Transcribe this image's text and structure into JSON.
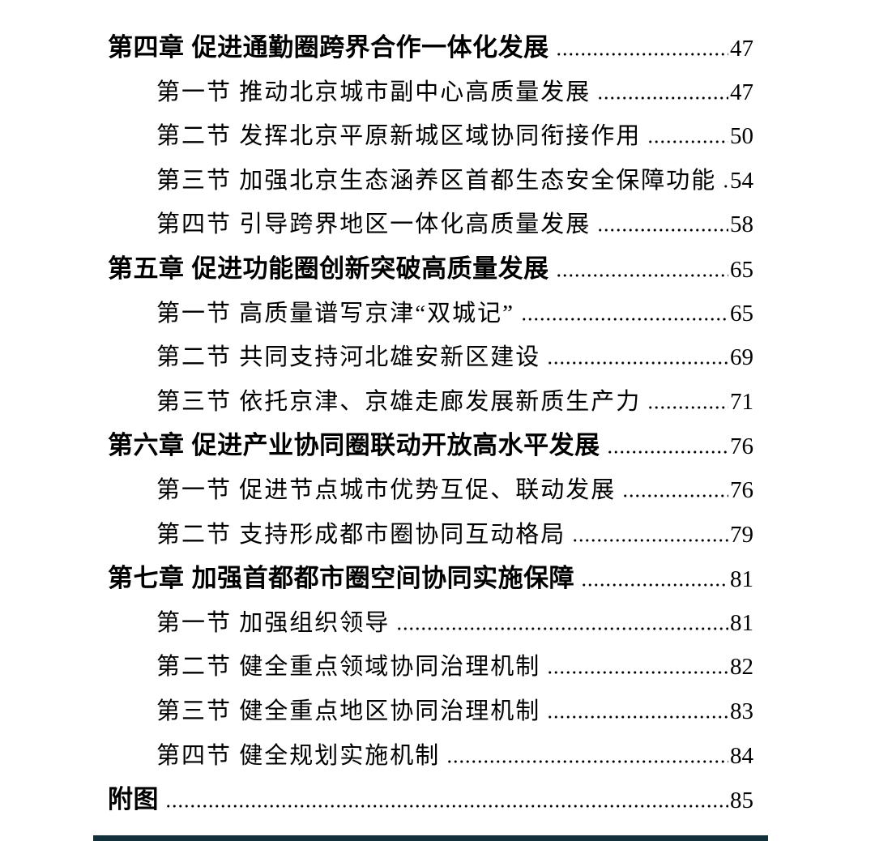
{
  "document": {
    "kind": "table-of-contents",
    "colors": {
      "text": "#000000",
      "background": "#ffffff",
      "bottom_bar": "#12303b"
    },
    "toc_rows": [
      {
        "level": "chapter",
        "label": "第四章 促进通勤圈跨界合作一体化发展",
        "page": "47"
      },
      {
        "level": "section",
        "label": "第一节 推动北京城市副中心高质量发展",
        "page": "47"
      },
      {
        "level": "section",
        "label": "第二节 发挥北京平原新城区域协同衔接作用",
        "page": "50"
      },
      {
        "level": "section",
        "label": "第三节 加强北京生态涵养区首都生态安全保障功能",
        "page": "54"
      },
      {
        "level": "section",
        "label": "第四节 引导跨界地区一体化高质量发展",
        "page": "58"
      },
      {
        "level": "chapter",
        "label": "第五章 促进功能圈创新突破高质量发展",
        "page": "65"
      },
      {
        "level": "section",
        "label": "第一节 高质量谱写京津“双城记”",
        "page": "65"
      },
      {
        "level": "section",
        "label": "第二节 共同支持河北雄安新区建设",
        "page": "69"
      },
      {
        "level": "section",
        "label": "第三节 依托京津、京雄走廊发展新质生产力",
        "page": "71"
      },
      {
        "level": "chapter",
        "label": "第六章 促进产业协同圈联动开放高水平发展",
        "page": "76"
      },
      {
        "level": "section",
        "label": "第一节 促进节点城市优势互促、联动发展",
        "page": "76"
      },
      {
        "level": "section",
        "label": "第二节 支持形成都市圈协同互动格局",
        "page": "79"
      },
      {
        "level": "chapter",
        "label": "第七章 加强首都都市圈空间协同实施保障",
        "page": "81"
      },
      {
        "level": "section",
        "label": "第一节 加强组织领导",
        "page": "81"
      },
      {
        "level": "section",
        "label": "第二节 健全重点领域协同治理机制",
        "page": "82"
      },
      {
        "level": "section",
        "label": "第三节 健全重点地区协同治理机制",
        "page": "83"
      },
      {
        "level": "section",
        "label": "第四节 健全规划实施机制",
        "page": "84"
      },
      {
        "level": "chapter",
        "label": "附图",
        "page": "85"
      }
    ]
  }
}
